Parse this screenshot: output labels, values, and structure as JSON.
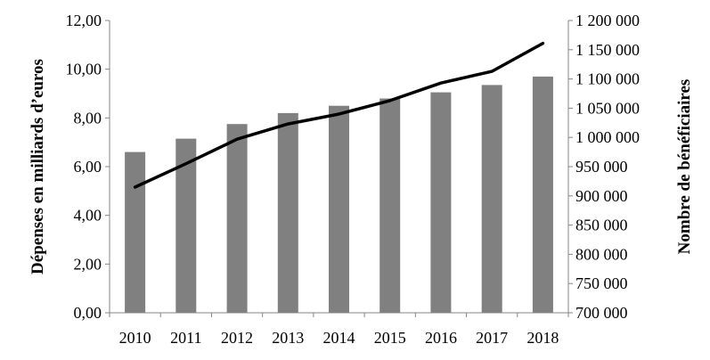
{
  "chart_data": {
    "type": "bar",
    "title": "",
    "xlabel": "",
    "categories": [
      "2010",
      "2011",
      "2012",
      "2013",
      "2014",
      "2015",
      "2016",
      "2017",
      "2018"
    ],
    "series": [
      {
        "type": "bar",
        "axis": "left",
        "color": "#808080",
        "values": [
          6.6,
          7.15,
          7.75,
          8.2,
          8.5,
          8.8,
          9.05,
          9.35,
          9.7
        ]
      },
      {
        "type": "line",
        "axis": "right",
        "color": "#000000",
        "values": [
          915000,
          955000,
          997000,
          1023000,
          1040000,
          1063000,
          1093000,
          1113000,
          1161000
        ]
      }
    ],
    "y_left": {
      "label": "Dépenses en milliards d’euros",
      "ylim": [
        0,
        12
      ],
      "ticks": [
        "0,00",
        "2,00",
        "4,00",
        "6,00",
        "8,00",
        "10,00",
        "12,00"
      ]
    },
    "y_right": {
      "label": "Nombre de bénéficiaires",
      "ylim": [
        700000,
        1200000
      ],
      "ticks": [
        "700 000",
        "750 000",
        "800 000",
        "850 000",
        "900 000",
        "950 000",
        "1 000 000",
        "1 050 000",
        "1 100 000",
        "1 150 000",
        "1 200 000"
      ]
    },
    "grid": false,
    "legend": "none"
  }
}
